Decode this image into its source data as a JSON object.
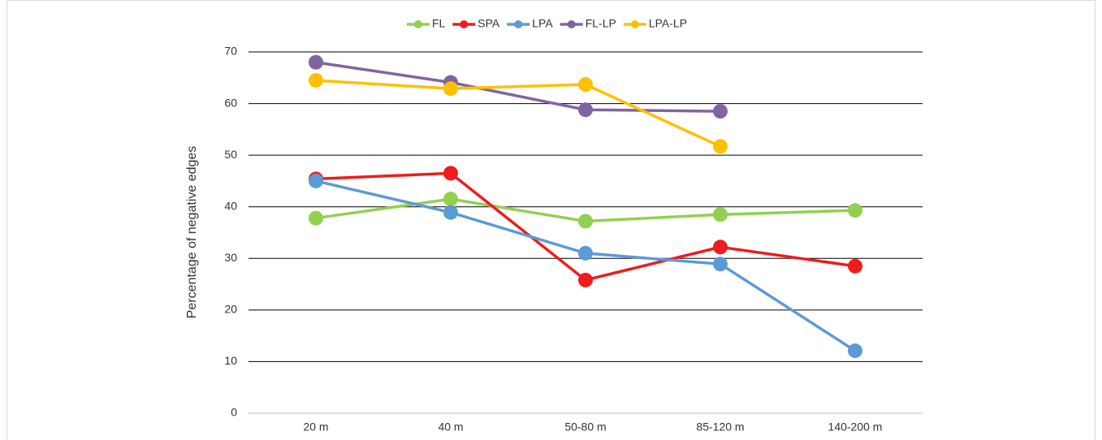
{
  "chart_data": {
    "type": "line",
    "y_label": "Percentage of negative edges",
    "categories": [
      "20 m",
      "40 m",
      "50-80 m",
      "85-120 m",
      "140-200 m"
    ],
    "series": [
      {
        "name": "FL",
        "color": "#92d050",
        "values": [
          37.8,
          41.5,
          37.2,
          38.5,
          39.3
        ]
      },
      {
        "name": "SPA",
        "color": "#ee1c1c",
        "values": [
          45.4,
          46.5,
          25.8,
          32.2,
          28.5
        ]
      },
      {
        "name": "LPA",
        "color": "#5b9bd5",
        "values": [
          45.0,
          38.9,
          31.0,
          28.9,
          12.1
        ]
      },
      {
        "name": "FL-LP",
        "color": "#8064a2",
        "values": [
          68.0,
          64.1,
          58.8,
          58.5,
          null
        ]
      },
      {
        "name": "LPA-LP",
        "color": "#ffc000",
        "values": [
          64.5,
          62.9,
          63.7,
          51.7,
          null
        ]
      }
    ],
    "ylim": [
      0,
      70
    ],
    "yticks": [
      0,
      10,
      20,
      30,
      40,
      50,
      60,
      70
    ],
    "grid": true,
    "legend": "top"
  }
}
